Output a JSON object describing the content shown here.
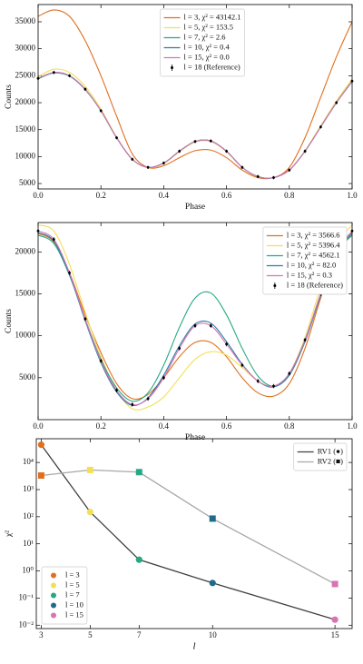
{
  "chart_data": [
    {
      "type": "line",
      "xlabel": "Phase",
      "ylabel": "Counts",
      "x": [
        0,
        0.05,
        0.1,
        0.15,
        0.2,
        0.25,
        0.3,
        0.35,
        0.4,
        0.45,
        0.5,
        0.55,
        0.6,
        0.65,
        0.7,
        0.75,
        0.8,
        0.85,
        0.9,
        0.95,
        1
      ],
      "xlim": [
        0,
        1
      ],
      "xticks": [
        {
          "value": 0,
          "label": "0.0"
        },
        0.2,
        0.4,
        0.6,
        0.8,
        {
          "value": 1,
          "label": "1.0"
        }
      ],
      "ylim": [
        4000,
        38200
      ],
      "yticks": [
        5000,
        10000,
        15000,
        20000,
        25000,
        30000,
        35000
      ],
      "smooth": true,
      "legend": "upper center",
      "series": [
        {
          "name": "l = 3, χ² = 43142.1",
          "color": "#e0701e",
          "values": [
            36000,
            37200,
            36000,
            31500,
            25000,
            17500,
            10500,
            8000,
            8300,
            9800,
            11100,
            11200,
            9800,
            7500,
            6100,
            6100,
            8000,
            13500,
            21000,
            28500,
            35000
          ]
        },
        {
          "name": "l = 5, χ² = 153.5",
          "color": "#f3df55",
          "values": [
            24800,
            26200,
            25600,
            23000,
            18800,
            13600,
            9500,
            8000,
            8700,
            10900,
            12700,
            12800,
            10900,
            8000,
            6300,
            6100,
            7500,
            11100,
            15700,
            20300,
            24400
          ]
        },
        {
          "name": "l = 7, χ² = 2.6",
          "color": "#26a884",
          "values": [
            24400,
            25500,
            24900,
            22400,
            18500,
            13500,
            9500,
            8000,
            8800,
            11000,
            12800,
            12900,
            11000,
            8000,
            6300,
            6100,
            7500,
            11000,
            15500,
            20000,
            23900
          ]
        },
        {
          "name": "l = 10, χ² = 0.4",
          "color": "#2a7fa8",
          "values": [
            24500,
            25600,
            25000,
            22500,
            18500,
            13500,
            9500,
            8000,
            8800,
            11000,
            12800,
            12900,
            11000,
            8000,
            6300,
            6100,
            7500,
            11000,
            15500,
            20000,
            24000
          ]
        },
        {
          "name": "l = 15, χ² = 0.0",
          "color": "#d873b4",
          "values": [
            24500,
            25600,
            25000,
            22500,
            18500,
            13500,
            9500,
            8000,
            8800,
            11000,
            12800,
            12900,
            11000,
            8000,
            6300,
            6100,
            7500,
            11000,
            15500,
            20000,
            24000
          ]
        },
        {
          "name": "l = 18 (Reference)",
          "color": "#000000",
          "style": "errorbar",
          "yerr": 300,
          "values": [
            24500,
            25600,
            25000,
            22500,
            18500,
            13500,
            9500,
            8000,
            8800,
            11000,
            12800,
            12900,
            11000,
            8000,
            6300,
            6100,
            7500,
            11000,
            15500,
            20000,
            24000
          ]
        }
      ]
    },
    {
      "type": "line",
      "xlabel": "Phase",
      "ylabel": "Counts",
      "x": [
        0,
        0.05,
        0.1,
        0.15,
        0.2,
        0.25,
        0.3,
        0.35,
        0.4,
        0.45,
        0.5,
        0.55,
        0.6,
        0.65,
        0.7,
        0.75,
        0.8,
        0.85,
        0.9,
        0.95,
        1
      ],
      "xlim": [
        0,
        1
      ],
      "xticks": [
        {
          "value": 0,
          "label": "0.0"
        },
        0.2,
        0.4,
        0.6,
        0.8,
        {
          "value": 1,
          "label": "1.0"
        }
      ],
      "ylim": [
        0,
        23500
      ],
      "yticks": [
        5000,
        10000,
        15000,
        20000
      ],
      "smooth": true,
      "legend": "upper right",
      "series": [
        {
          "name": "l = 3, χ² = 3566.6",
          "color": "#e0701e",
          "values": [
            22200,
            21200,
            17500,
            12500,
            8000,
            4300,
            2500,
            3000,
            5000,
            7500,
            9200,
            9200,
            7500,
            5000,
            3200,
            2800,
            4300,
            8500,
            14500,
            19800,
            22200
          ]
        },
        {
          "name": "l = 5, χ² = 5396.4",
          "color": "#f3df55",
          "values": [
            23200,
            22500,
            18500,
            12800,
            7500,
            3500,
            1300,
            1500,
            2700,
            5000,
            7200,
            8100,
            7700,
            6200,
            4600,
            4000,
            5500,
            9800,
            15800,
            20800,
            23200
          ]
        },
        {
          "name": "l = 7, χ² = 4562.1",
          "color": "#26a884",
          "values": [
            22000,
            21000,
            17200,
            12000,
            7200,
            3800,
            2200,
            3200,
            6500,
            11000,
            14500,
            15100,
            12500,
            8500,
            5200,
            4000,
            5500,
            9500,
            15000,
            19800,
            22000
          ]
        },
        {
          "name": "l = 10, χ² = 82.0",
          "color": "#2a7fa8",
          "values": [
            22300,
            21300,
            17300,
            11800,
            6800,
            3300,
            1700,
            2600,
            5300,
            8800,
            11400,
            11500,
            9300,
            6600,
            4600,
            3900,
            5300,
            9300,
            14800,
            19800,
            22300
          ]
        },
        {
          "name": "l = 15, χ² = 0.3",
          "color": "#d873b4",
          "values": [
            22500,
            21500,
            17500,
            12000,
            7000,
            3500,
            1800,
            2500,
            5000,
            8500,
            11200,
            11200,
            9000,
            6500,
            4600,
            4000,
            5500,
            9500,
            15000,
            20000,
            22500
          ]
        },
        {
          "name": "l = 18 (Reference)",
          "color": "#000000",
          "style": "errorbar",
          "yerr": 250,
          "values": [
            22500,
            21500,
            17500,
            12000,
            7000,
            3500,
            1800,
            2500,
            5000,
            8500,
            11200,
            11200,
            9000,
            6500,
            4600,
            4000,
            5500,
            9500,
            15000,
            20000,
            22500
          ]
        }
      ]
    },
    {
      "type": "line",
      "xlabel": "l",
      "ylabel": "χ²",
      "x": [
        3,
        5,
        7,
        10,
        15
      ],
      "xlim": [
        2.8,
        15.7
      ],
      "xticks": [
        3,
        5,
        7,
        10,
        15
      ],
      "yscale": "log",
      "ylim": [
        0.0075,
        75000
      ],
      "yticks": [
        {
          "value": 0.01,
          "label": "10⁻²"
        },
        {
          "value": 0.1,
          "label": "10⁻¹"
        },
        {
          "value": 1,
          "label": "10⁰"
        },
        {
          "value": 10,
          "label": "10¹"
        },
        {
          "value": 100,
          "label": "10²"
        },
        {
          "value": 1000,
          "label": "10³"
        },
        {
          "value": 10000,
          "label": "10⁴"
        }
      ],
      "smooth": false,
      "legend": "upper right",
      "marker_legend": {
        "loc": "lower left",
        "labels": [
          "l = 3",
          "l = 5",
          "l = 7",
          "l = 10",
          "l = 15"
        ],
        "colors": [
          "#e0701e",
          "#f3df55",
          "#26a884",
          "#1f6b8c",
          "#d873b4"
        ]
      },
      "series": [
        {
          "name": "RV1 (●)",
          "color": "#404040",
          "marker": "circle",
          "values": [
            45000,
            150,
            2.6,
            0.36,
            0.016
          ]
        },
        {
          "name": "RV2 (■)",
          "color": "#a8a8a8",
          "marker": "square",
          "values": [
            3300,
            5300,
            4400,
            85,
            0.33
          ]
        }
      ]
    }
  ]
}
